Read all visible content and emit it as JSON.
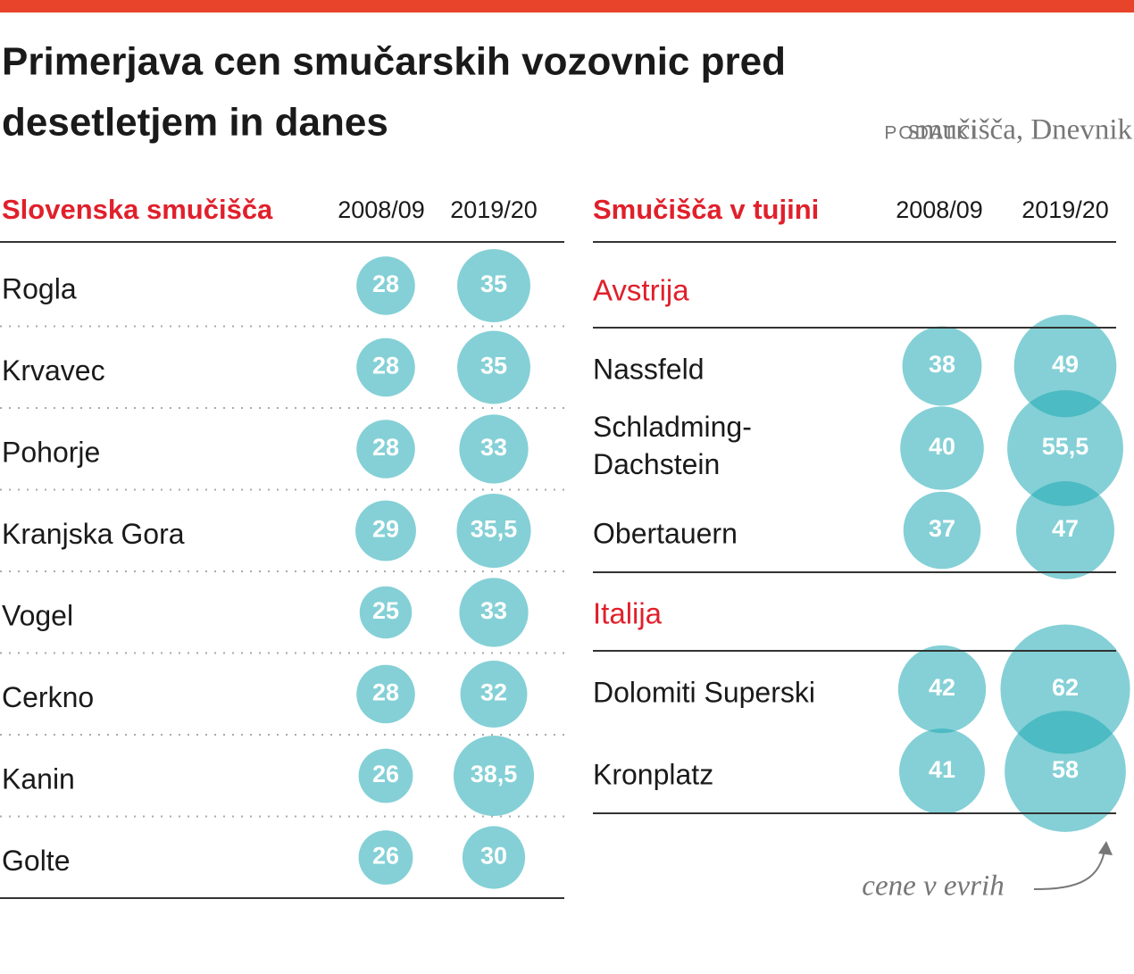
{
  "title_lines": [
    "Primerjava cen smučarskih vozovnic pred",
    "desetletjem in danes"
  ],
  "source_label": "PODATKI",
  "source": "smučišča, Dnevnik",
  "slovenia": {
    "heading": "Slovenska smučišča",
    "columns": [
      "2008/09",
      "2019/20"
    ],
    "rows": [
      {
        "name": "Rogla",
        "values": [
          28,
          35
        ]
      },
      {
        "name": "Krvavec",
        "values": [
          28,
          35
        ]
      },
      {
        "name": "Pohorje",
        "values": [
          28,
          33
        ]
      },
      {
        "name": "Kranjska Gora",
        "values": [
          29,
          35.5
        ],
        "value_labels": [
          "29",
          "35,5"
        ]
      },
      {
        "name": "Vogel",
        "values": [
          25,
          33
        ]
      },
      {
        "name": "Cerkno",
        "values": [
          28,
          32
        ]
      },
      {
        "name": "Kanin",
        "values": [
          26,
          38.5
        ],
        "value_labels": [
          "26",
          "38,5"
        ]
      },
      {
        "name": "Golte",
        "values": [
          26,
          30
        ]
      }
    ]
  },
  "abroad": {
    "heading": "Smučišča v tujini",
    "columns": [
      "2008/09",
      "2019/20"
    ],
    "groups": [
      {
        "name": "Avstrija",
        "rows": [
          {
            "name": "Nassfeld",
            "values": [
              38,
              49
            ]
          },
          {
            "name": "Schladming-Dachstein",
            "values": [
              40,
              55.5
            ],
            "value_labels": [
              "40",
              "55,5"
            ]
          },
          {
            "name": "Obertauern",
            "values": [
              37,
              47
            ]
          }
        ]
      },
      {
        "name": "Italija",
        "rows": [
          {
            "name": "Dolomiti Superski",
            "values": [
              42,
              62
            ]
          },
          {
            "name": "Kronplatz",
            "values": [
              41,
              58
            ]
          }
        ]
      }
    ]
  },
  "note": "cene v evrih"
}
